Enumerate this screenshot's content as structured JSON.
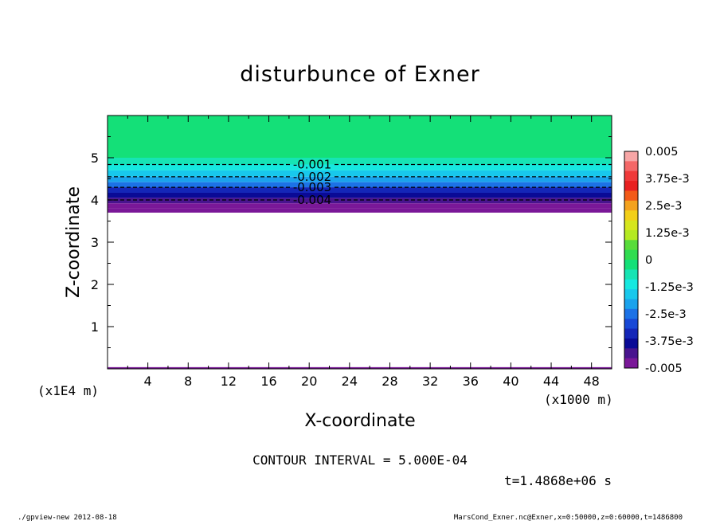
{
  "chart_data": {
    "type": "contour",
    "title": "disturbunce of Exner",
    "xlabel": "X-coordinate",
    "ylabel": "Z-coordinate",
    "x_unit_label": "(x1000 m)",
    "y_unit_label": "(x1E4 m)",
    "xlim": [
      0,
      50
    ],
    "ylim": [
      0,
      6
    ],
    "x_ticks": [
      "4",
      "8",
      "12",
      "16",
      "20",
      "24",
      "28",
      "32",
      "36",
      "40",
      "44",
      "48"
    ],
    "y_ticks": [
      "1",
      "2",
      "3",
      "4",
      "5"
    ],
    "contour_interval_text": "CONTOUR INTERVAL = 5.000E-04",
    "time_text": "t=1.4868e+06 s",
    "contour_lines": [
      {
        "label": "-0.001",
        "level": -0.001,
        "z": 4.84
      },
      {
        "label": "-0.002",
        "level": -0.002,
        "z": 4.55
      },
      {
        "label": "-0.003",
        "level": -0.003,
        "z": 4.3
      },
      {
        "label": "-0.004",
        "level": -0.004,
        "z": 4.0
      }
    ],
    "field_bands": [
      {
        "z_from": 5.0,
        "z_to": 6.0,
        "value": -0.00025
      },
      {
        "z_from": 4.84,
        "z_to": 5.0,
        "value": -0.0007
      },
      {
        "z_from": 4.7,
        "z_to": 4.84,
        "value": -0.0012
      },
      {
        "z_from": 4.55,
        "z_to": 4.7,
        "value": -0.0017
      },
      {
        "z_from": 4.42,
        "z_to": 4.55,
        "value": -0.0022
      },
      {
        "z_from": 4.3,
        "z_to": 4.42,
        "value": -0.0027
      },
      {
        "z_from": 4.17,
        "z_to": 4.3,
        "value": -0.0032
      },
      {
        "z_from": 4.05,
        "z_to": 4.17,
        "value": -0.0037
      },
      {
        "z_from": 3.92,
        "z_to": 4.05,
        "value": -0.0042
      },
      {
        "z_from": 3.8,
        "z_to": 3.92,
        "value": -0.0046
      },
      {
        "z_from": 3.7,
        "z_to": 3.8,
        "value": -0.005
      }
    ],
    "colorbar": {
      "labels": [
        "0.005",
        "3.75e-3",
        "2.5e-3",
        "1.25e-3",
        "0",
        "-1.25e-3",
        "-2.5e-3",
        "-3.75e-3",
        "-0.005"
      ],
      "colors": [
        "#f7a6a6",
        "#f46868",
        "#f03a3a",
        "#e82020",
        "#f25a18",
        "#f4a21e",
        "#f2cf18",
        "#d6e61e",
        "#b4ea22",
        "#58dc3a",
        "#30dc50",
        "#14e078",
        "#16e4b4",
        "#16e8e0",
        "#18c8ec",
        "#1aa2ec",
        "#1c72e6",
        "#1848d6",
        "#1426b8",
        "#0a0a96",
        "#48148e",
        "#7a1898"
      ]
    }
  },
  "footer": {
    "left": "./gpview-new   2012-08-18",
    "right": "MarsCond_Exner.nc@Exner,x=0:50000,z=0:60000,t=1486800"
  }
}
